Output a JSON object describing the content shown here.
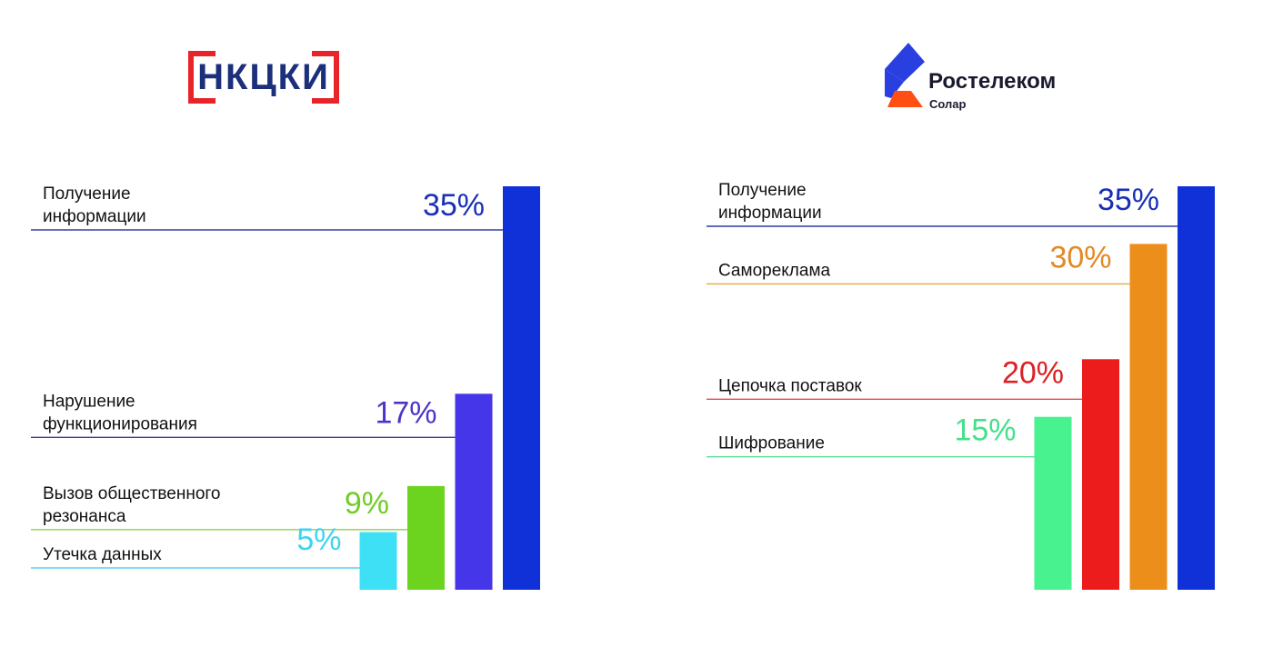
{
  "logos": {
    "left_text": "НКЦКИ",
    "right_brand": "Ростелеком",
    "right_sub": "Солар"
  },
  "chart_data": [
    {
      "type": "bar",
      "categories": [
        "Получение информации",
        "Нарушение функционирования",
        "Вызов общественного резонанса",
        "Утечка данных"
      ],
      "values": [
        35,
        17,
        9,
        5
      ],
      "value_labels": [
        "35%",
        "17%",
        "9%",
        "5%"
      ],
      "label_lines": [
        [
          "Получение",
          "информации"
        ],
        [
          "Нарушение",
          "функционирования"
        ],
        [
          "Вызов общественного",
          "резонанса"
        ],
        [
          "Утечка данных"
        ]
      ],
      "colors": [
        "#1030d8",
        "#4636ea",
        "#6cd41e",
        "#3ee0f6"
      ],
      "label_colors": [
        "#1a2fb6",
        "#4a35c8",
        "#72cc28",
        "#3ed4f0"
      ],
      "line_colors": [
        "#2d3fa6",
        "#3c3aa8",
        "#8ed24a",
        "#58d2ee"
      ],
      "ylim": [
        0,
        35
      ]
    },
    {
      "type": "bar",
      "categories": [
        "Получение информации",
        "Самореклама",
        "Цепочка поставок",
        "Шифрование"
      ],
      "values": [
        35,
        30,
        20,
        15
      ],
      "value_labels": [
        "35%",
        "30%",
        "20%",
        "15%"
      ],
      "label_lines": [
        [
          "Получение",
          "информации"
        ],
        [
          "Самореклама"
        ],
        [
          "Цепочка поставок"
        ],
        [
          "Шифрование"
        ]
      ],
      "colors": [
        "#1030d8",
        "#ec8f1a",
        "#ec1c1c",
        "#48f28e"
      ],
      "label_colors": [
        "#1a2fb6",
        "#e48a24",
        "#dc2024",
        "#44e08a"
      ],
      "line_colors": [
        "#2d3fa6",
        "#eca446",
        "#e04a4e",
        "#5ae094"
      ],
      "ylim": [
        0,
        35
      ]
    }
  ]
}
